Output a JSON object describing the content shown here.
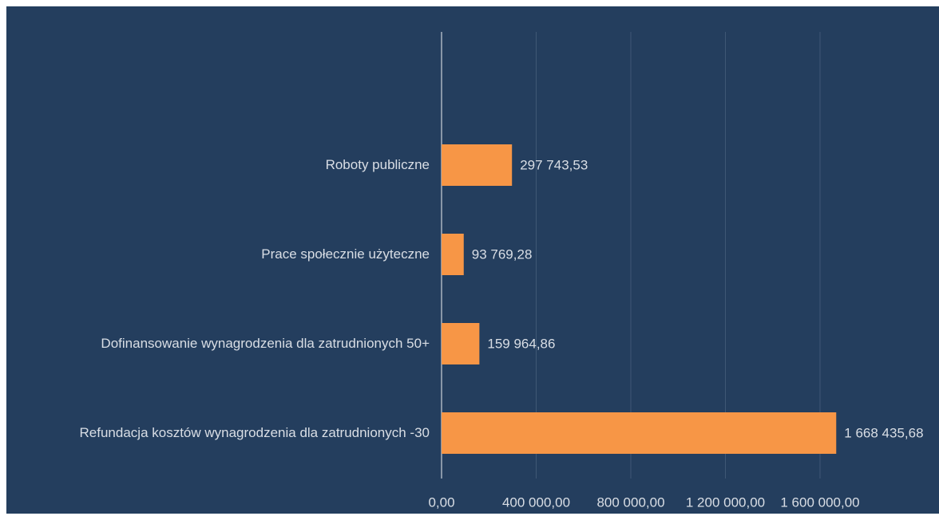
{
  "chart_data": {
    "type": "bar",
    "orientation": "horizontal",
    "categories": [
      "Roboty publiczne",
      "Prace społecznie użyteczne",
      "Dofinansowanie wynagrodzenia dla zatrudnionych 50+",
      "Refundacja kosztów wynagrodzenia dla zatrudnionych -30"
    ],
    "values": [
      297743.53,
      93769.28,
      159964.86,
      1668435.68
    ],
    "value_labels": [
      "297 743,53",
      "93 769,28",
      "159 964,86",
      "1 668 435,68"
    ],
    "color": "#f79646",
    "xlim": [
      0,
      1600000
    ],
    "xticks": [
      {
        "value": 0,
        "label": "0,00"
      },
      {
        "value": 400000,
        "label": "400 000,00"
      },
      {
        "value": 800000,
        "label": "800 000,00"
      },
      {
        "value": 1200000,
        "label": "1 200 000,00"
      },
      {
        "value": 1600000,
        "label": "1 600 000,00"
      }
    ],
    "grid": true
  }
}
